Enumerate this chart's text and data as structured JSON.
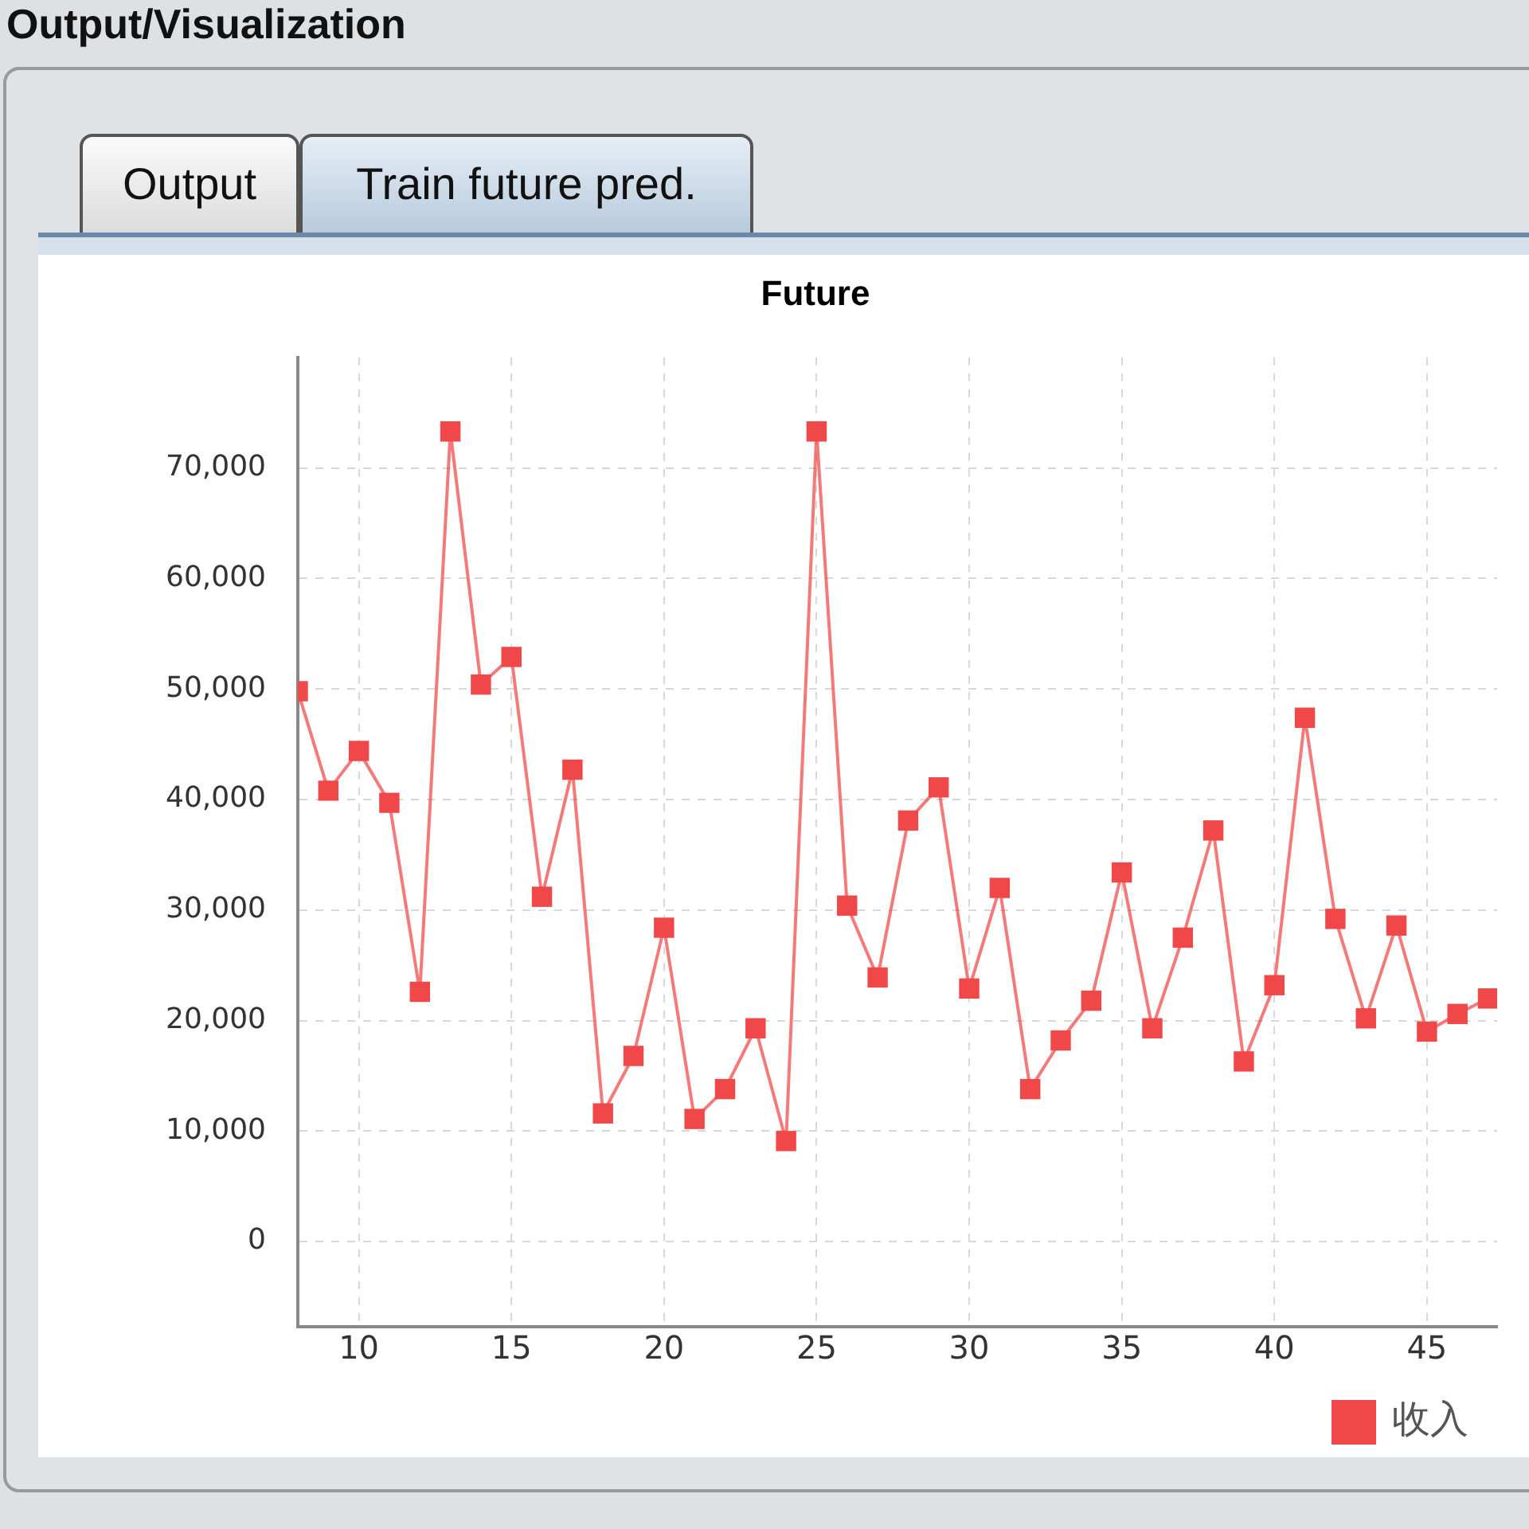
{
  "chart_data": {
    "type": "line",
    "title": "Future",
    "annotations": [
      "Output/Visualization",
      "Output",
      "Train future pred."
    ],
    "x": [
      8,
      9,
      10,
      11,
      12,
      13,
      14,
      15,
      16,
      17,
      18,
      19,
      20,
      21,
      22,
      23,
      24,
      25,
      26,
      27,
      28,
      29,
      30,
      31,
      32,
      33,
      34,
      35,
      36,
      37,
      38,
      39,
      40,
      41,
      42,
      43,
      44,
      45,
      46,
      47
    ],
    "series": [
      {
        "name": "收入",
        "color": "#f04848",
        "values": [
          49800,
          40800,
          44400,
          39700,
          22600,
          73300,
          50400,
          52900,
          31200,
          42700,
          11600,
          16800,
          28400,
          11100,
          13800,
          19300,
          9100,
          73300,
          30400,
          23900,
          38100,
          41100,
          22900,
          32000,
          13800,
          18200,
          21800,
          33400,
          19300,
          27500,
          37200,
          16300,
          23200,
          47400,
          29200,
          20200,
          28600,
          19000,
          20600,
          22000
        ]
      }
    ],
    "xlim": [
      8,
      47.3
    ],
    "xticks": [
      10,
      15,
      20,
      25,
      30,
      35,
      40,
      45
    ],
    "ylim": [
      -7700,
      80000
    ],
    "yticks": [
      {
        "value": 0,
        "label": "0"
      },
      {
        "value": 10000,
        "label": "10,000"
      },
      {
        "value": 20000,
        "label": "20,000"
      },
      {
        "value": 30000,
        "label": "30,000"
      },
      {
        "value": 40000,
        "label": "40,000"
      },
      {
        "value": 50000,
        "label": "50,000"
      },
      {
        "value": 60000,
        "label": "60,000"
      },
      {
        "value": 70000,
        "label": "70,000"
      }
    ],
    "grid": true,
    "legend": "bottom",
    "marker": "square",
    "line_style": "solid"
  }
}
